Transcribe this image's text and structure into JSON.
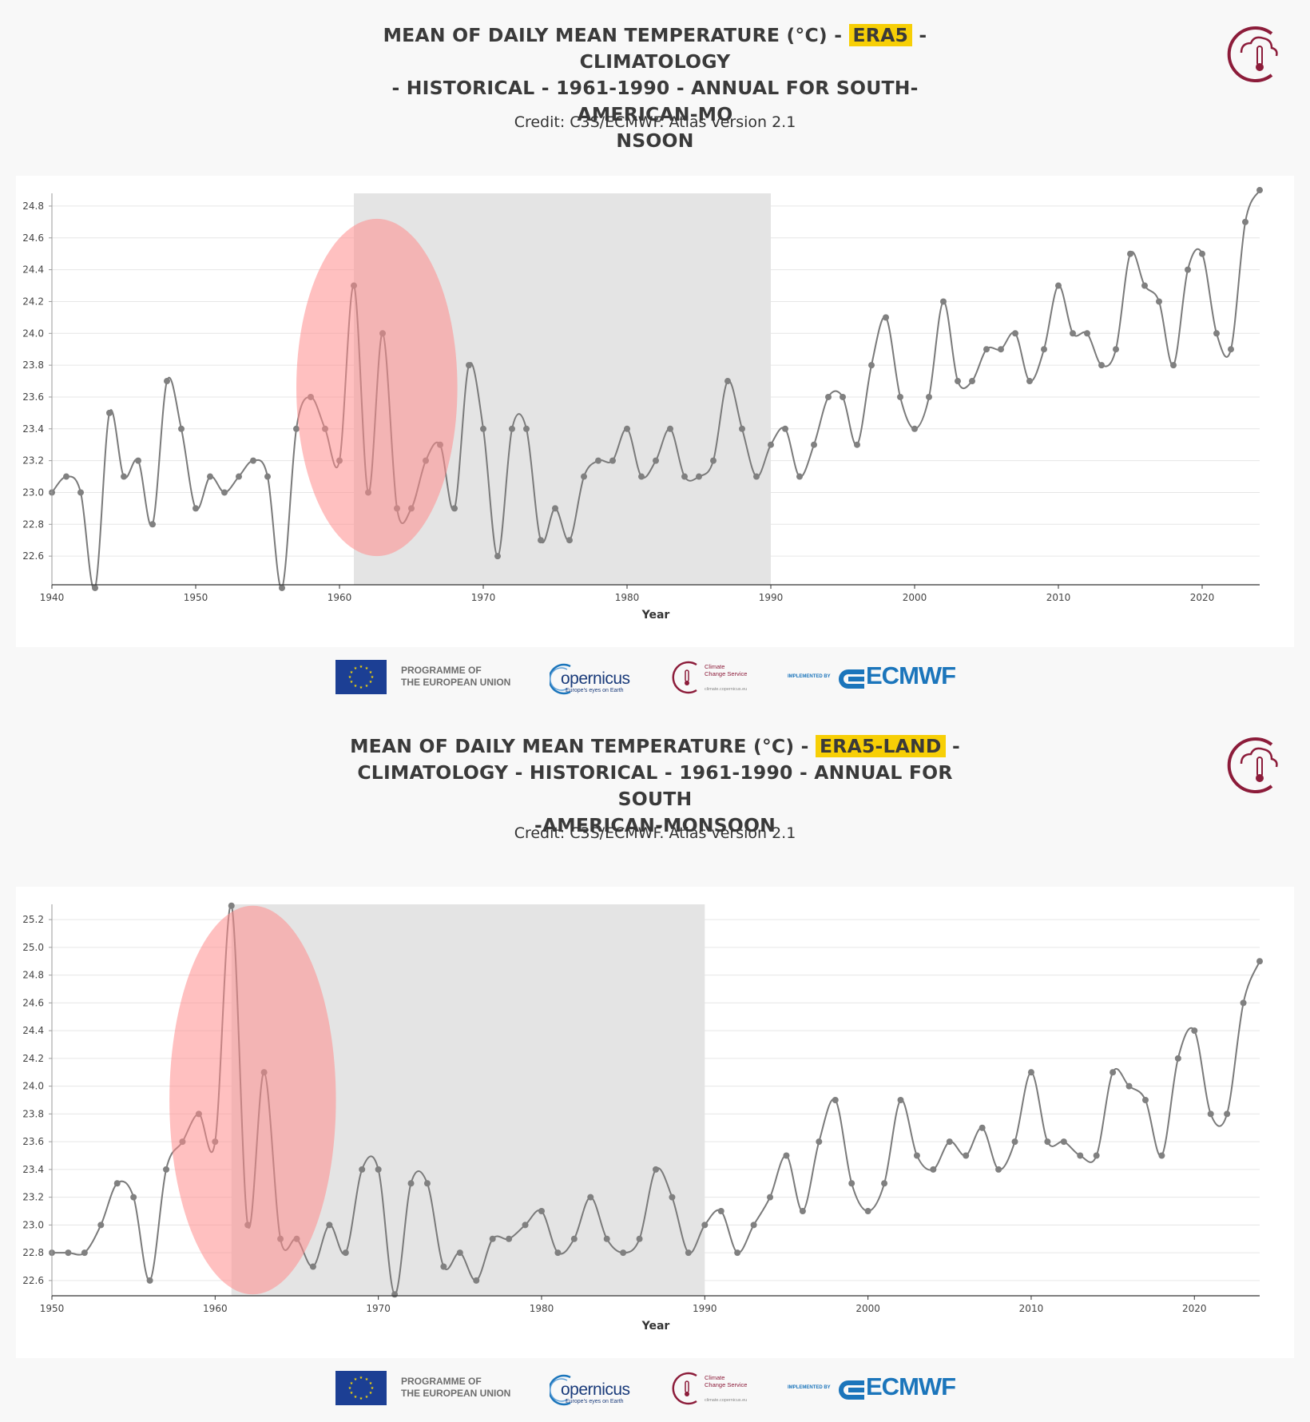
{
  "chart_data": [
    {
      "type": "line",
      "title_parts": [
        "MEAN OF DAILY MEAN TEMPERATURE (°C) - ",
        "ERA5",
        " - CLIMATOLOGY",
        "- HISTORICAL - 1961-1990 - ANNUAL FOR SOUTH-AMERICAN-MO",
        "NSOON"
      ],
      "credit": "Credit: C3S/ECMWF. Atlas version 2.1",
      "xlabel": "Year",
      "ylabel": "",
      "xlim": [
        1940,
        2024
      ],
      "ylim": [
        22.42,
        24.88
      ],
      "xticks": [
        "1940",
        "1950",
        "1960",
        "1970",
        "1980",
        "1990",
        "2000",
        "2010",
        "2020"
      ],
      "yticks": [
        "22.6",
        "22.8",
        "23.0",
        "23.2",
        "23.4",
        "23.6",
        "23.8",
        "24.0",
        "24.2",
        "24.4",
        "24.6",
        "24.8"
      ],
      "baseline_period": [
        1961,
        1990
      ],
      "highlight_ellipse": {
        "x_center": 1962.6,
        "x_radius": 5.6,
        "y_center": 23.66,
        "y_radius": 1.06
      },
      "series": [
        {
          "name": "ERA5",
          "x_start": 1940,
          "values": [
            23.0,
            23.1,
            23.0,
            22.4,
            23.5,
            23.1,
            23.2,
            22.8,
            23.7,
            23.4,
            22.9,
            23.1,
            23.0,
            23.1,
            23.2,
            23.1,
            22.4,
            23.4,
            23.6,
            23.4,
            23.2,
            24.3,
            23.0,
            24.0,
            22.9,
            22.9,
            23.2,
            23.3,
            22.9,
            23.8,
            23.4,
            22.6,
            23.4,
            23.4,
            22.7,
            22.9,
            22.7,
            23.1,
            23.2,
            23.2,
            23.4,
            23.1,
            23.2,
            23.4,
            23.1,
            23.1,
            23.2,
            23.7,
            23.4,
            23.1,
            23.3,
            23.4,
            23.1,
            23.3,
            23.6,
            23.6,
            23.3,
            23.8,
            24.1,
            23.6,
            23.4,
            23.6,
            24.2,
            23.7,
            23.7,
            23.9,
            23.9,
            24.0,
            23.7,
            23.9,
            24.3,
            24.0,
            24.0,
            23.8,
            23.9,
            24.5,
            24.3,
            24.2,
            23.8,
            24.4,
            24.5,
            24.0,
            23.9,
            24.7,
            24.9
          ]
        }
      ]
    },
    {
      "type": "line",
      "title_parts": [
        "MEAN OF DAILY MEAN TEMPERATURE (°C) - ",
        "ERA5-LAND",
        " -",
        "CLIMATOLOGY - HISTORICAL - 1961-1990 - ANNUAL FOR SOUTH",
        "-AMERICAN-MONSOON"
      ],
      "credit": "Credit: C3S/ECMWF. Atlas version 2.1",
      "xlabel": "Year",
      "ylabel": "",
      "xlim": [
        1950,
        2024
      ],
      "ylim": [
        22.49,
        25.31
      ],
      "xticks": [
        "1950",
        "1960",
        "1970",
        "1980",
        "1990",
        "2000",
        "2010",
        "2020"
      ],
      "yticks": [
        "22.6",
        "22.8",
        "23.0",
        "23.2",
        "23.4",
        "23.6",
        "23.8",
        "24.0",
        "24.2",
        "24.4",
        "24.6",
        "24.8",
        "25.0",
        "25.2"
      ],
      "baseline_period": [
        1961,
        1990
      ],
      "highlight_ellipse": {
        "x_center": 1962.3,
        "x_radius": 5.1,
        "y_center": 23.9,
        "y_radius": 1.4
      },
      "series": [
        {
          "name": "ERA5-LAND",
          "x_start": 1950,
          "values": [
            22.8,
            22.8,
            22.8,
            23.0,
            23.3,
            23.2,
            22.6,
            23.4,
            23.6,
            23.8,
            23.6,
            25.3,
            23.0,
            24.1,
            22.9,
            22.9,
            22.7,
            23.0,
            22.8,
            23.4,
            23.4,
            22.5,
            23.3,
            23.3,
            22.7,
            22.8,
            22.6,
            22.9,
            22.9,
            23.0,
            23.1,
            22.8,
            22.9,
            23.2,
            22.9,
            22.8,
            22.9,
            23.4,
            23.2,
            22.8,
            23.0,
            23.1,
            22.8,
            23.0,
            23.2,
            23.5,
            23.1,
            23.6,
            23.9,
            23.3,
            23.1,
            23.3,
            23.9,
            23.5,
            23.4,
            23.6,
            23.5,
            23.7,
            23.4,
            23.6,
            24.1,
            23.6,
            23.6,
            23.5,
            23.5,
            24.1,
            24.0,
            23.9,
            23.5,
            24.2,
            24.4,
            23.8,
            23.8,
            24.6,
            24.9
          ]
        }
      ]
    }
  ],
  "footer": {
    "programme": "PROGRAMME OF",
    "eu": "THE EUROPEAN UNION",
    "copernicus": "opernicus",
    "copernicus_sub": "Europe's eyes on Earth",
    "ccs_line1": "Climate",
    "ccs_line2": "Change Service",
    "ccs_url": "climate.copernicus.eu",
    "implemented_by": "IMPLEMENTED BY",
    "ecmwf": "ECMWF"
  },
  "colors": {
    "line": "#7a7a7a",
    "marker": "#808080",
    "baseline": "#e4e4e4",
    "ellipse": "#ff8c8c",
    "highlight": "#f7cf06",
    "brand": "#8c1c3a"
  }
}
